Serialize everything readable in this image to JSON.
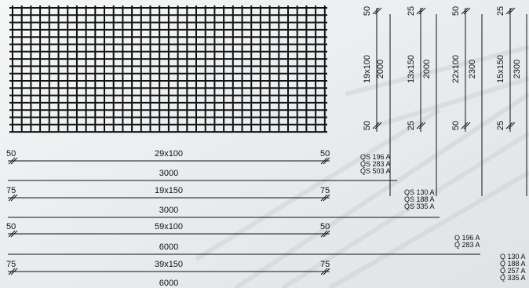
{
  "bars": [
    {
      "end": "50",
      "spacing": "29x100",
      "length": "3000"
    },
    {
      "end": "75",
      "spacing": "19x150",
      "length": "3000"
    },
    {
      "end": "50",
      "spacing": "59x100",
      "length": "6000"
    },
    {
      "end": "75",
      "spacing": "39x150",
      "length": "6000"
    }
  ],
  "verticals": [
    {
      "top": "50",
      "spacing": "19x100",
      "length": "2000",
      "bottom": "50"
    },
    {
      "top": "25",
      "spacing": "13x150",
      "length": "2000",
      "bottom": "25"
    },
    {
      "top": "50",
      "spacing": "22x100",
      "length": "2300",
      "bottom": "50"
    },
    {
      "top": "25",
      "spacing": "15x150",
      "length": "2300",
      "bottom": "25"
    }
  ],
  "groups": [
    [
      "QS 196 A",
      "QS 283 A",
      "QS 503 A"
    ],
    [
      "QS 130 A",
      "QS 188 A",
      "QS 335 A"
    ],
    [
      "Q 196 A",
      "Q 283 A"
    ],
    [
      "Q 130 A",
      "Q 188 A",
      "Q 257 A",
      "Q 335 A"
    ]
  ],
  "colors": {
    "mesh": "#111111",
    "background": "#eceff1"
  }
}
